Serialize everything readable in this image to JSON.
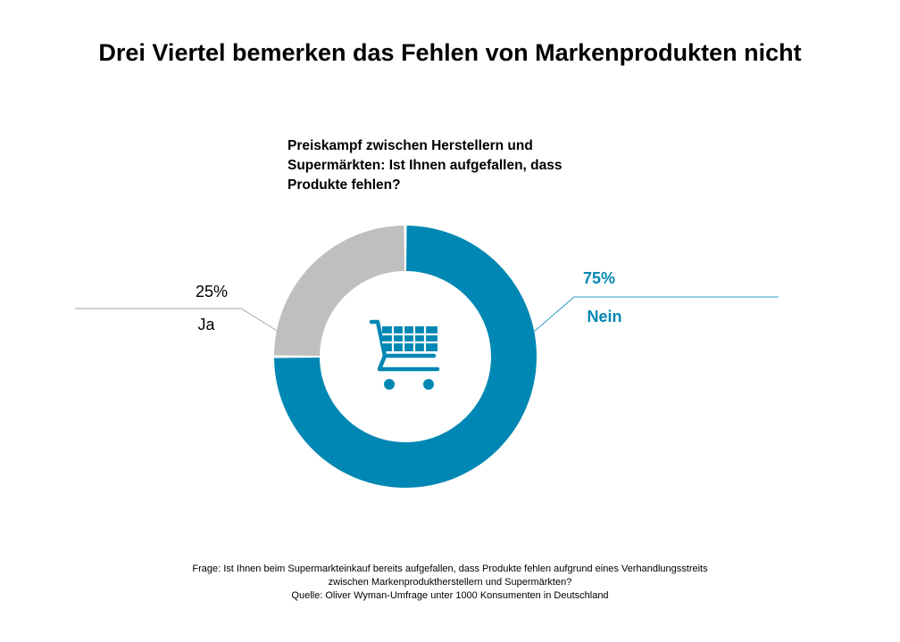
{
  "title": "Drei Viertel bemerken das Fehlen von Markenprodukten nicht",
  "subtitle": "Preiskampf zwischen Herstellern und Supermärkten: Ist Ihnen aufgefallen, dass Produkte fehlen?",
  "center_icon": "shopping-cart-icon",
  "chart_data": {
    "type": "pie",
    "variant": "donut",
    "title": "Preiskampf zwischen Herstellern und Supermärkten: Ist Ihnen aufgefallen, dass Produkte fehlen?",
    "slices": [
      {
        "label": "Nein",
        "value": 75,
        "value_label": "75%",
        "color": "#0087B3",
        "label_color": "#0087B3"
      },
      {
        "label": "Ja",
        "value": 25,
        "value_label": "25%",
        "color": "#BFBFBF",
        "label_color": "#000000"
      }
    ],
    "unit": "%"
  },
  "footer": {
    "line1": "Frage:  Ist Ihnen beim Supermarkteinkauf bereits aufgefallen, dass Produkte fehlen  aufgrund eines Verhandlungsstreits",
    "line2": "zwischen Markenproduktherstellern und Supermärkten?",
    "line3": "Quelle: Oliver Wyman-Umfrage unter  1000 Konsumenten  in Deutschland"
  },
  "colors": {
    "accent": "#0087B3",
    "neutral": "#BFBFBF",
    "leader_blue": "#2E9CC0",
    "leader_grey": "#A6A6A6"
  }
}
